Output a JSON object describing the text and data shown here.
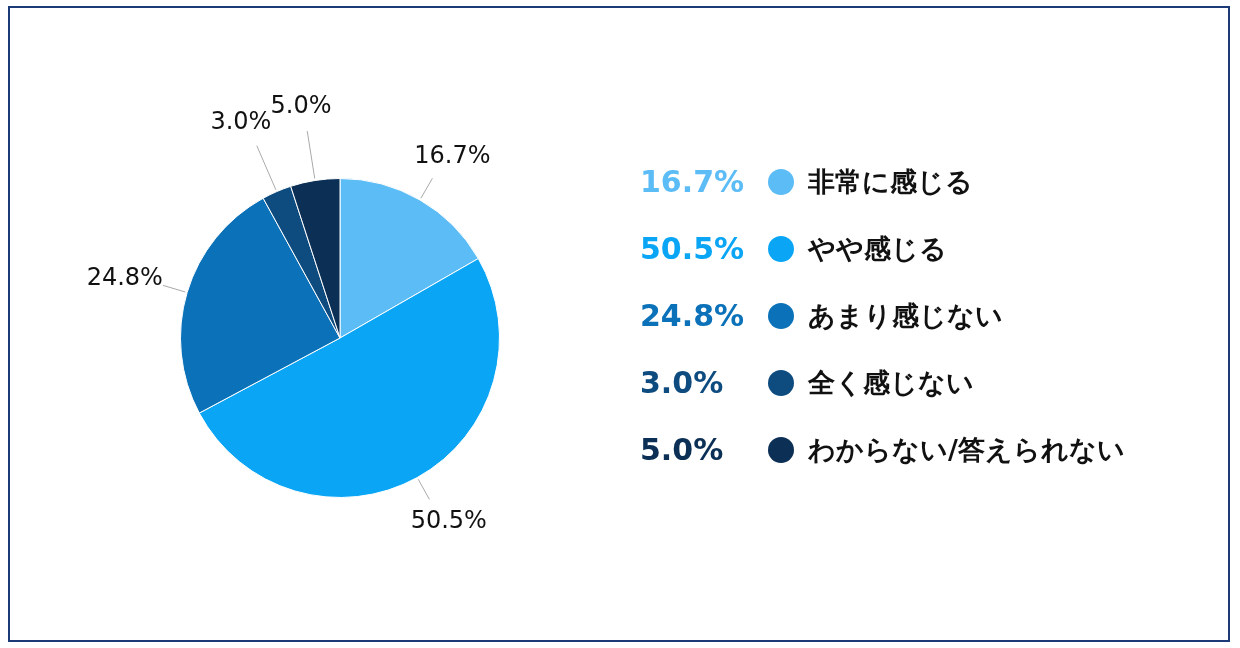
{
  "chart_data": {
    "type": "pie",
    "categories": [
      "非常に感じる",
      "やや感じる",
      "あまり感じない",
      "全く感じない",
      "わからない/答えられない"
    ],
    "values": [
      16.7,
      50.5,
      24.8,
      3.0,
      5.0
    ],
    "value_labels": [
      "16.7%",
      "50.5%",
      "24.8%",
      "3.0%",
      "5.0%"
    ],
    "colors": [
      "#5cbcf6",
      "#0aa6f5",
      "#0b72b9",
      "#0e4c80",
      "#0b2f55"
    ],
    "legend": "right"
  }
}
